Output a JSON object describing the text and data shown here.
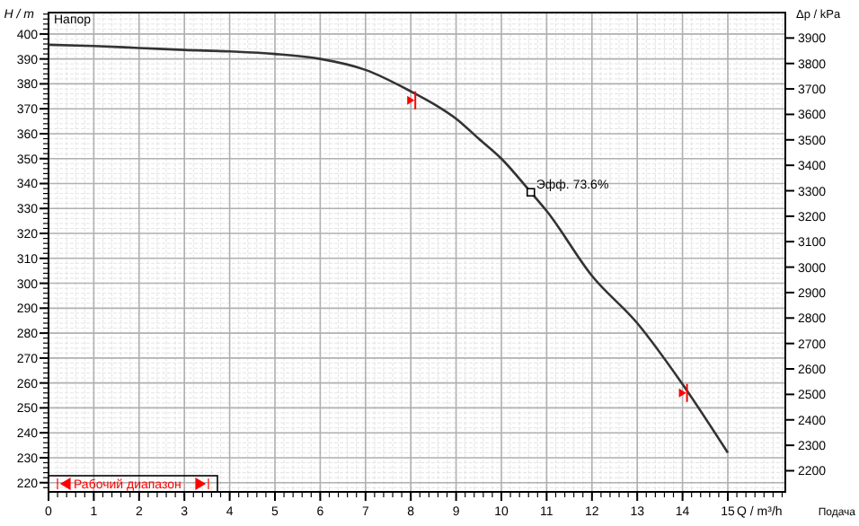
{
  "chart_data": {
    "type": "line",
    "xlabel": "Q / m³/h",
    "ylabel": "H / m",
    "y2label": "Δp / kPa",
    "annotations": [
      {
        "text": "Эфф. 73.6%",
        "x": 10.65,
        "y": 336.5
      },
      "Напор",
      "Подача",
      "Рабочий диапазон"
    ],
    "x": [
      0,
      1,
      2,
      3,
      4,
      5,
      6,
      7,
      8,
      8.5,
      9,
      9.5,
      10,
      10.65,
      11,
      12,
      13,
      14,
      15
    ],
    "series": [
      {
        "color": "#333333",
        "values": [
          395.7,
          395.2,
          394.4,
          393.6,
          393,
          392,
          390,
          385.6,
          377,
          372,
          366,
          358,
          350,
          336.5,
          329,
          303,
          284,
          259.5,
          232
        ]
      },
      {
        "type": "scatter",
        "marker": "triangle",
        "color": "#ff0000",
        "x": [
          8,
          14
        ],
        "values": [
          373.4,
          256
        ]
      }
    ],
    "xlim": [
      0,
      16.27
    ],
    "xticks": [
      0,
      1,
      2,
      3,
      4,
      5,
      6,
      7,
      8,
      9,
      10,
      11,
      12,
      13,
      14,
      15
    ],
    "ylim": [
      216.3,
      408.6
    ],
    "yticks": [
      220,
      230,
      240,
      250,
      260,
      270,
      280,
      290,
      300,
      310,
      320,
      330,
      340,
      350,
      360,
      370,
      380,
      390,
      400
    ],
    "y2lim": [
      2117,
      4000
    ],
    "y2ticks": [
      2200,
      2300,
      2400,
      2500,
      2600,
      2700,
      2800,
      2900,
      3000,
      3100,
      3200,
      3300,
      3400,
      3500,
      3600,
      3700,
      3800,
      3900
    ],
    "grid": true,
    "marker": "none",
    "line_style": "solid"
  }
}
